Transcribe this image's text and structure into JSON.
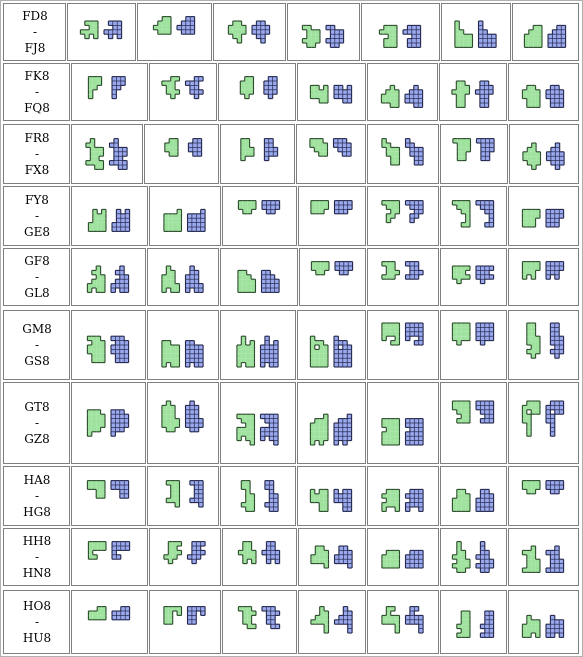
{
  "colors": {
    "outer_border": "#b0b0b0",
    "cell_border": "#7f7f7f",
    "cell_bg": "#ffffff",
    "page_bg": "#ffffff",
    "green_fill": "#9ee29e",
    "green_stroke": "#2a4a2a",
    "blue_fill": "#9aa9ee",
    "blue_stroke": "#22264a",
    "cell_line": "#1a1a2a"
  },
  "rows": [
    {
      "from": "FD8",
      "sep": "-",
      "to": "FJ8"
    },
    {
      "from": "FK8",
      "sep": "-",
      "to": "FQ8"
    },
    {
      "from": "FR8",
      "sep": "-",
      "to": "FX8"
    },
    {
      "from": "FY8",
      "sep": "-",
      "to": "GE8"
    },
    {
      "from": "GF8",
      "sep": "-",
      "to": "GL8"
    },
    {
      "from": "GM8",
      "sep": "-",
      "to": "GS8"
    },
    {
      "from": "GT8",
      "sep": "-",
      "to": "GZ8"
    },
    {
      "from": "HA8",
      "sep": "-",
      "to": "HG8"
    },
    {
      "from": "HH8",
      "sep": "-",
      "to": "HN8"
    },
    {
      "from": "HO8",
      "sep": "-",
      "to": "HU8"
    }
  ],
  "pieces_per_row": 7,
  "piece_icon": "polyomino-pair-icon"
}
